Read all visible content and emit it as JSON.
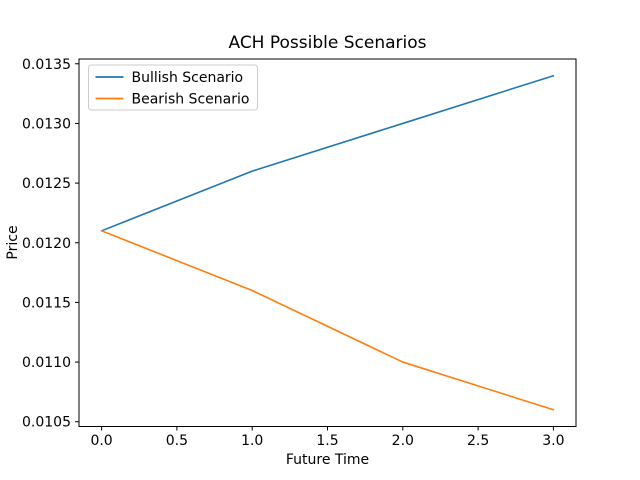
{
  "chart_data": {
    "type": "line",
    "title": "ACH Possible Scenarios",
    "xlabel": "Future Time",
    "ylabel": "Price",
    "x": [
      0.0,
      1.0,
      2.0,
      3.0
    ],
    "series": [
      {
        "name": "Bullish Scenario",
        "color": "#1f77b4",
        "values": [
          0.0121,
          0.0126,
          0.013,
          0.0134
        ]
      },
      {
        "name": "Bearish Scenario",
        "color": "#ff7f0e",
        "values": [
          0.0121,
          0.0116,
          0.011,
          0.0106
        ]
      }
    ],
    "xticks": [
      0.0,
      0.5,
      1.0,
      1.5,
      2.0,
      2.5,
      3.0
    ],
    "xtick_labels": [
      "0.0",
      "0.5",
      "1.0",
      "1.5",
      "2.0",
      "2.5",
      "3.0"
    ],
    "yticks": [
      0.0105,
      0.011,
      0.0115,
      0.012,
      0.0125,
      0.013,
      0.0135
    ],
    "ytick_labels": [
      "0.0105",
      "0.0110",
      "0.0115",
      "0.0120",
      "0.0125",
      "0.0130",
      "0.0135"
    ],
    "xlim": [
      -0.15,
      3.15
    ],
    "ylim": [
      0.01046,
      0.01354
    ],
    "grid": false,
    "legend": {
      "position": "upper left",
      "entries": [
        "Bullish Scenario",
        "Bearish Scenario"
      ]
    },
    "background_color": "#ffffff",
    "axis_color": "#000000",
    "legend_border_color": "#cccccc"
  }
}
